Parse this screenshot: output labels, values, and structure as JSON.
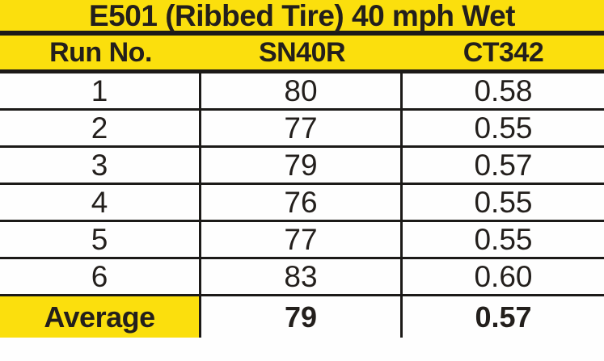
{
  "table": {
    "title": "E501 (Ribbed Tire) 40 mph Wet",
    "columns": [
      "Run No.",
      "SN40R",
      "CT342"
    ],
    "rows": [
      [
        "1",
        "80",
        "0.58"
      ],
      [
        "2",
        "77",
        "0.55"
      ],
      [
        "3",
        "79",
        "0.57"
      ],
      [
        "4",
        "76",
        "0.55"
      ],
      [
        "5",
        "77",
        "0.55"
      ],
      [
        "6",
        "83",
        "0.60"
      ]
    ],
    "average": {
      "label": "Average",
      "sn40r": "79",
      "ct342": "0.57"
    }
  },
  "chart_data": {
    "type": "table",
    "title": "E501 (Ribbed Tire) 40 mph Wet",
    "columns": [
      "Run No.",
      "SN40R",
      "CT342"
    ],
    "rows": [
      [
        1,
        80,
        0.58
      ],
      [
        2,
        77,
        0.55
      ],
      [
        3,
        79,
        0.57
      ],
      [
        4,
        76,
        0.55
      ],
      [
        5,
        77,
        0.55
      ],
      [
        6,
        83,
        0.6
      ]
    ],
    "average_row": [
      "Average",
      79,
      0.57
    ]
  },
  "colors": {
    "highlight": "#fbdf0d",
    "text": "#231f1c",
    "border": "#1c1a18",
    "cell_background": "#fefefe"
  }
}
